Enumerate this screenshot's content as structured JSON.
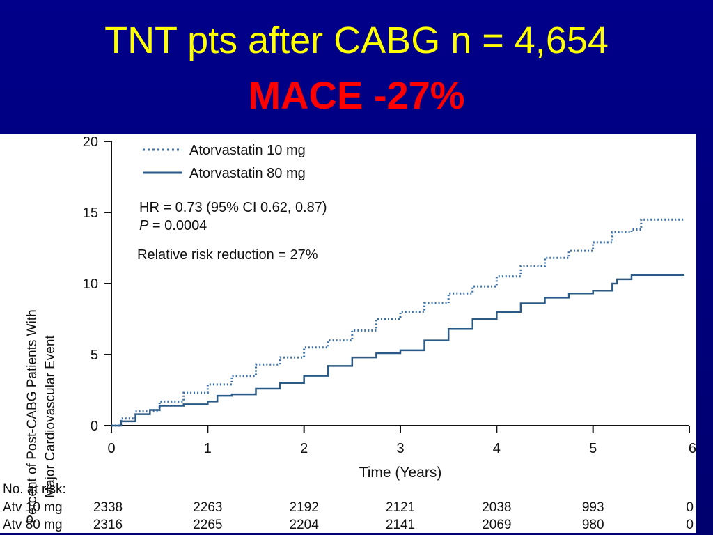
{
  "slide": {
    "title": "TNT pts after CABG n = 4,654",
    "subtitle": "MACE -27%"
  },
  "chart_data": {
    "type": "line",
    "xlabel": "Time (Years)",
    "ylabel_lines": [
      "Percent of Post-CABG Patients With",
      "Major Cardiovascular Event"
    ],
    "xlim": [
      0,
      6
    ],
    "ylim": [
      0,
      20
    ],
    "x_ticks": [
      "0",
      "1",
      "2",
      "3",
      "4",
      "5",
      "6"
    ],
    "y_ticks": [
      "0",
      "5",
      "10",
      "15",
      "20"
    ],
    "grid": false,
    "legend_position": "top-left",
    "series": [
      {
        "name": "Atorvastatin 10 mg",
        "style": "dotted",
        "color": "#3a6fa5",
        "points": [
          [
            0,
            0
          ],
          [
            0.1,
            0.5
          ],
          [
            0.25,
            1.0
          ],
          [
            0.5,
            1.7
          ],
          [
            0.75,
            2.3
          ],
          [
            1.0,
            2.9
          ],
          [
            1.25,
            3.5
          ],
          [
            1.5,
            4.3
          ],
          [
            1.75,
            4.8
          ],
          [
            2.0,
            5.5
          ],
          [
            2.25,
            6.0
          ],
          [
            2.5,
            6.7
          ],
          [
            2.75,
            7.5
          ],
          [
            3.0,
            8.0
          ],
          [
            3.25,
            8.6
          ],
          [
            3.5,
            9.3
          ],
          [
            3.75,
            9.8
          ],
          [
            4.0,
            10.5
          ],
          [
            4.25,
            11.2
          ],
          [
            4.5,
            11.8
          ],
          [
            4.75,
            12.3
          ],
          [
            5.0,
            12.9
          ],
          [
            5.2,
            13.6
          ],
          [
            5.4,
            13.8
          ],
          [
            5.5,
            14.5
          ],
          [
            5.95,
            14.5
          ]
        ]
      },
      {
        "name": "Atorvastatin 80 mg",
        "style": "solid",
        "color": "#2a5a85",
        "points": [
          [
            0,
            0
          ],
          [
            0.1,
            0.3
          ],
          [
            0.25,
            0.8
          ],
          [
            0.4,
            1.1
          ],
          [
            0.5,
            1.4
          ],
          [
            0.75,
            1.5
          ],
          [
            1.0,
            1.7
          ],
          [
            1.1,
            2.1
          ],
          [
            1.25,
            2.2
          ],
          [
            1.5,
            2.6
          ],
          [
            1.75,
            3.0
          ],
          [
            2.0,
            3.5
          ],
          [
            2.25,
            4.2
          ],
          [
            2.5,
            4.8
          ],
          [
            2.75,
            5.1
          ],
          [
            3.0,
            5.3
          ],
          [
            3.25,
            6.0
          ],
          [
            3.5,
            6.8
          ],
          [
            3.75,
            7.5
          ],
          [
            4.0,
            8.0
          ],
          [
            4.25,
            8.6
          ],
          [
            4.5,
            9.0
          ],
          [
            4.75,
            9.3
          ],
          [
            5.0,
            9.5
          ],
          [
            5.2,
            10.0
          ],
          [
            5.25,
            10.3
          ],
          [
            5.4,
            10.6
          ],
          [
            5.95,
            10.6
          ]
        ]
      }
    ],
    "annotations": {
      "hr": "HR = 0.73 (95% CI 0.62, 0.87)",
      "p_label": "P",
      "p_value": " = 0.0004",
      "rrr": "Relative risk reduction = 27%"
    },
    "risk_table": {
      "header": "No. at risk:",
      "rows": [
        {
          "label": "Atv 10 mg",
          "values": [
            "2338",
            "2263",
            "2192",
            "2121",
            "2038",
            "993",
            "0"
          ]
        },
        {
          "label": "Atv 80 mg",
          "values": [
            "2316",
            "2265",
            "2204",
            "2141",
            "2069",
            "980",
            "0"
          ]
        }
      ]
    }
  }
}
